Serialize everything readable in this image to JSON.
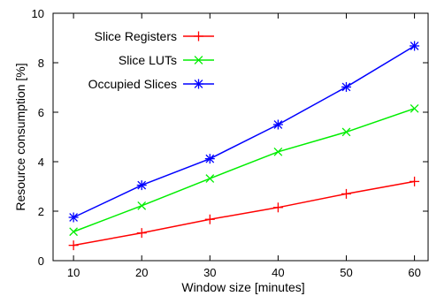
{
  "chart_data": {
    "type": "line",
    "xlabel": "Window size [minutes]",
    "ylabel": "Resource consumption [%]",
    "x": [
      10,
      20,
      30,
      40,
      50,
      60
    ],
    "xlim": [
      7,
      62
    ],
    "ylim": [
      0,
      10
    ],
    "xticks": [
      "10",
      "20",
      "30",
      "40",
      "50",
      "60"
    ],
    "yticks": [
      "0",
      "2",
      "4",
      "6",
      "8",
      "10"
    ],
    "grid": false,
    "legend_position": "top-left",
    "series": [
      {
        "name": "Slice Registers",
        "color": "#ff0000",
        "marker": "plus-marker",
        "values": [
          0.62,
          1.12,
          1.67,
          2.15,
          2.7,
          3.2
        ]
      },
      {
        "name": "Slice LUTs",
        "color": "#00ee00",
        "marker": "x-marker",
        "values": [
          1.17,
          2.22,
          3.32,
          4.4,
          5.2,
          6.15
        ]
      },
      {
        "name": "Occupied Slices",
        "color": "#0000ff",
        "marker": "star-marker",
        "values": [
          1.75,
          3.05,
          4.12,
          5.5,
          7.02,
          8.68
        ]
      }
    ]
  }
}
